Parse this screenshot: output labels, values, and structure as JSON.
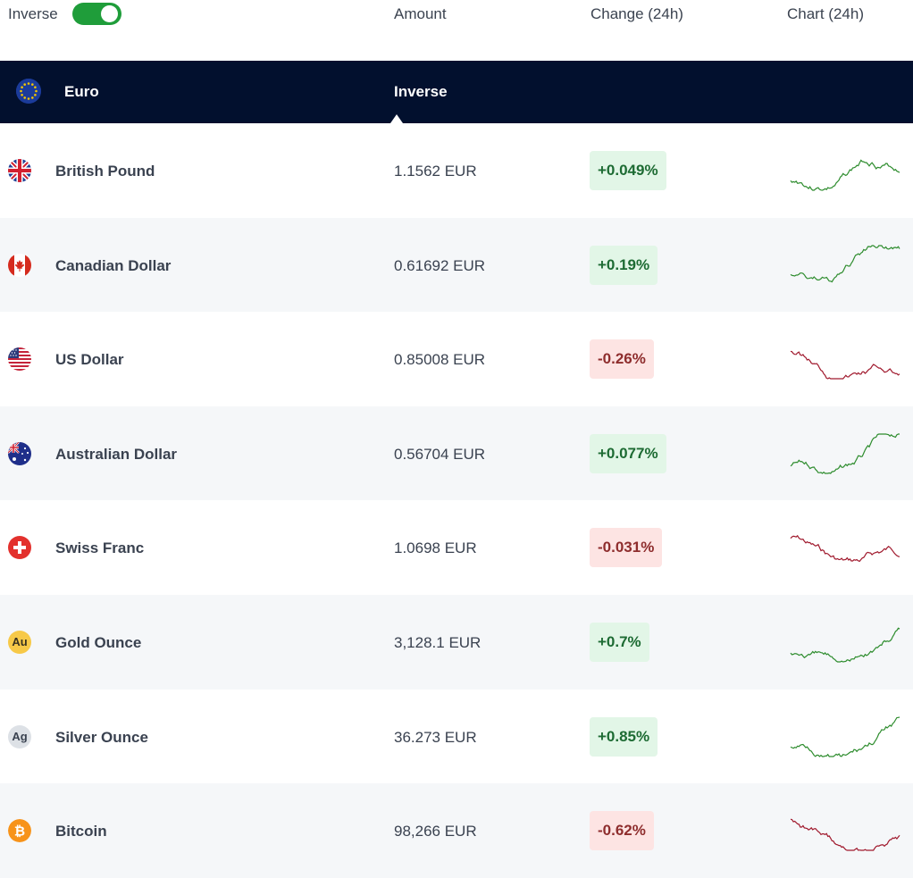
{
  "header": {
    "inverse_label": "Inverse",
    "inverse_on": true,
    "columns": {
      "amount": "Amount",
      "change": "Change (24h)",
      "chart": "Chart (24h)"
    }
  },
  "base": {
    "name": "Euro",
    "mode_label": "Inverse",
    "flag_icon": "eu-flag-icon"
  },
  "rows": [
    {
      "name": "British Pound",
      "amount": "1.1562 EUR",
      "change": "+0.049%",
      "trend": "up",
      "icon": "uk-flag-icon"
    },
    {
      "name": "Canadian Dollar",
      "amount": "0.61692 EUR",
      "change": "+0.19%",
      "trend": "up",
      "icon": "canada-flag-icon"
    },
    {
      "name": "US Dollar",
      "amount": "0.85008 EUR",
      "change": "-0.26%",
      "trend": "down",
      "icon": "us-flag-icon"
    },
    {
      "name": "Australian Dollar",
      "amount": "0.56704 EUR",
      "change": "+0.077%",
      "trend": "up",
      "icon": "australia-flag-icon"
    },
    {
      "name": "Swiss Franc",
      "amount": "1.0698 EUR",
      "change": "-0.031%",
      "trend": "down",
      "icon": "swiss-flag-icon"
    },
    {
      "name": "Gold Ounce",
      "amount": "3,128.1 EUR",
      "change": "+0.7%",
      "trend": "up",
      "icon": "gold-coin-icon",
      "coin_text": "Au"
    },
    {
      "name": "Silver Ounce",
      "amount": "36.273 EUR",
      "change": "+0.85%",
      "trend": "up",
      "icon": "silver-coin-icon",
      "coin_text": "Ag"
    },
    {
      "name": "Bitcoin",
      "amount": "98,266 EUR",
      "change": "-0.62%",
      "trend": "down",
      "icon": "bitcoin-icon"
    }
  ],
  "colors": {
    "up_line": "#2d8c2d",
    "down_line": "#a0192d",
    "header_bg": "#02102e",
    "toggle_on": "#1f9d3a"
  }
}
